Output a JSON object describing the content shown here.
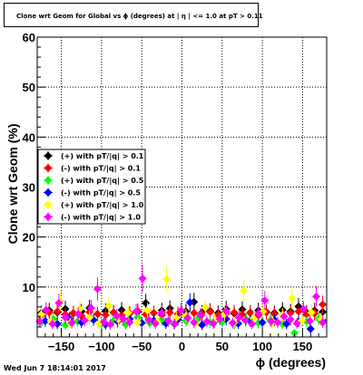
{
  "chart_data": {
    "type": "scatter",
    "title": "Clone wrt Geom for Global vs ϕ (degrees) at | η | <= 1.0 at pT > 0.11",
    "xlabel": "ϕ (degrees)",
    "ylabel": "Clone wrt  Geom (%)",
    "xlim": [
      -180,
      180
    ],
    "ylim": [
      0,
      60
    ],
    "xticks": [
      -150,
      -100,
      -50,
      0,
      50,
      100,
      150
    ],
    "yticks": [
      10,
      20,
      30,
      40,
      50,
      60
    ],
    "grid": true,
    "legend_position": "middle-left",
    "series": [
      {
        "name": "(+) with pT/|q| > 0.1",
        "color": "#000000",
        "x": [
          -175,
          -165,
          -155,
          -145,
          -135,
          -125,
          -115,
          -105,
          -95,
          -85,
          -75,
          -65,
          -55,
          -45,
          -35,
          -25,
          -15,
          -5,
          5,
          15,
          25,
          35,
          45,
          55,
          65,
          75,
          85,
          95,
          105,
          115,
          125,
          135,
          145,
          155,
          165,
          175
        ],
        "y": [
          4.8,
          5.3,
          4.9,
          5.6,
          4.7,
          5.1,
          5.8,
          4.6,
          5.2,
          4.9,
          5.4,
          4.7,
          5.0,
          6.8,
          4.8,
          5.3,
          5.7,
          4.6,
          5.1,
          7.0,
          4.9,
          5.2,
          4.8,
          5.6,
          4.7,
          5.5,
          4.9,
          5.3,
          5.0,
          4.8,
          5.4,
          5.1,
          6.1,
          4.9,
          5.3,
          5.0
        ]
      },
      {
        "name": "(-) with pT/|q| > 0.1",
        "color": "#ff0000",
        "x": [
          -175,
          -165,
          -155,
          -145,
          -135,
          -125,
          -115,
          -105,
          -95,
          -85,
          -75,
          -65,
          -55,
          -45,
          -35,
          -25,
          -15,
          -5,
          5,
          15,
          25,
          35,
          45,
          55,
          65,
          75,
          85,
          95,
          105,
          115,
          125,
          135,
          145,
          155,
          165,
          175
        ],
        "y": [
          4.3,
          4.9,
          5.1,
          4.5,
          4.8,
          4.2,
          5.0,
          4.6,
          4.4,
          4.9,
          4.3,
          4.7,
          5.2,
          4.5,
          4.8,
          4.4,
          4.9,
          4.6,
          4.3,
          4.8,
          4.5,
          5.0,
          4.4,
          4.7,
          4.9,
          4.5,
          4.8,
          4.3,
          4.9,
          4.6,
          4.4,
          4.8,
          5.1,
          4.5,
          4.7,
          6.5
        ]
      },
      {
        "name": "(+) with pT/|q| > 0.5",
        "color": "#00ff00",
        "x": [
          -175,
          -160,
          -145,
          -130,
          -115,
          -100,
          -85,
          -70,
          -55,
          -40,
          -25,
          -10,
          5,
          20,
          35,
          50,
          65,
          80,
          95,
          110,
          125,
          140,
          155,
          170
        ],
        "y": [
          2.9,
          3.6,
          2.4,
          3.1,
          3.8,
          2.7,
          3.3,
          2.5,
          3.9,
          2.8,
          3.4,
          2.6,
          3.2,
          3.7,
          2.9,
          3.0,
          2.5,
          3.5,
          2.8,
          3.3,
          2.6,
          0.8,
          3.1,
          3.6
        ]
      },
      {
        "name": "(-) with pT/|q| > 0.5",
        "color": "#0000ff",
        "x": [
          -170,
          -155,
          -140,
          -125,
          -110,
          -95,
          -80,
          -65,
          -50,
          -35,
          -20,
          -5,
          10,
          25,
          40,
          55,
          70,
          85,
          100,
          115,
          130,
          145,
          160,
          175
        ],
        "y": [
          3.2,
          2.6,
          3.7,
          2.9,
          3.4,
          2.5,
          3.1,
          3.6,
          2.8,
          3.3,
          2.7,
          3.5,
          6.9,
          2.4,
          3.0,
          3.6,
          2.7,
          3.2,
          2.9,
          3.4,
          2.6,
          3.1,
          1.6,
          3.3
        ]
      },
      {
        "name": "(+) with pT/|q| > 1.0",
        "color": "#ffff00",
        "x": [
          -175,
          -163,
          -151,
          -139,
          -127,
          -115,
          -103,
          -91,
          -79,
          -67,
          -55,
          -43,
          -31,
          -19,
          -7,
          5,
          17,
          29,
          41,
          53,
          65,
          77,
          89,
          101,
          113,
          125,
          137,
          149,
          161,
          173
        ],
        "y": [
          4.5,
          3.2,
          7.1,
          2.8,
          5.6,
          3.9,
          2.6,
          6.2,
          3.5,
          4.8,
          2.9,
          5.3,
          3.1,
          11.6,
          3.8,
          4.2,
          2.7,
          5.9,
          3.4,
          4.6,
          2.9,
          9.3,
          3.7,
          5.1,
          3.0,
          4.4,
          7.7,
          3.3,
          4.9,
          3.6
        ]
      },
      {
        "name": "(-) with pT/|q| > 1.0",
        "color": "#ff00ff",
        "x": [
          -177,
          -169,
          -161,
          -153,
          -145,
          -137,
          -129,
          -121,
          -113,
          -105,
          -97,
          -89,
          -81,
          -73,
          -65,
          -57,
          -49,
          -41,
          -33,
          -25,
          -17,
          -9,
          -1,
          7,
          15,
          23,
          31,
          39,
          47,
          55,
          63,
          71,
          79,
          87,
          95,
          103,
          111,
          119,
          127,
          135,
          143,
          151,
          159,
          167,
          175
        ],
        "y": [
          3.1,
          5.4,
          2.6,
          6.8,
          3.9,
          2.8,
          4.6,
          3.3,
          5.8,
          9.6,
          3.0,
          2.5,
          4.2,
          3.6,
          2.9,
          5.1,
          11.7,
          3.4,
          2.7,
          4.8,
          3.2,
          2.6,
          5.3,
          3.8,
          2.9,
          4.4,
          3.1,
          2.7,
          3.6,
          5.2,
          2.8,
          3.9,
          3.3,
          2.6,
          4.7,
          7.3,
          3.1,
          2.9,
          4.1,
          3.5,
          2.7,
          5.6,
          3.2,
          8.1,
          2.9
        ]
      }
    ]
  },
  "footer": {
    "timestamp": "Wed Jun  7 18:14:01 2017"
  }
}
